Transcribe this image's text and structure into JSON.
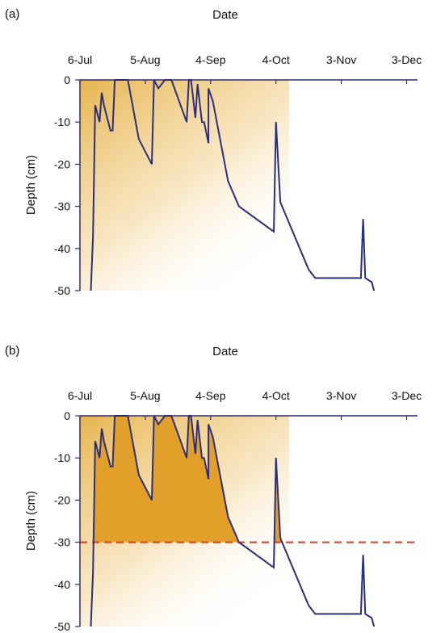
{
  "chart_data": [
    {
      "type": "line",
      "panel_label": "(a)",
      "title": "Date",
      "xlabel": "Date",
      "ylabel": "Depth (cm)",
      "x_ticks": [
        "6-Jul",
        "5-Aug",
        "4-Sep",
        "4-Oct",
        "3-Nov",
        "3-Dec"
      ],
      "x_tick_dates": [
        "2000-07-06",
        "2000-08-05",
        "2000-09-04",
        "2000-10-04",
        "2000-11-03",
        "2000-12-03"
      ],
      "xlim": [
        "2000-07-06",
        "2000-12-08"
      ],
      "y_ticks": [
        "0",
        "-10",
        "-20",
        "-30",
        "-40",
        "-50"
      ],
      "ylim": [
        -50,
        0
      ],
      "grid": false,
      "x_axis_position": "top",
      "colors": {
        "line": "#2b2f7a",
        "fill_top": "#e2a72e",
        "fill_bottom": "#ffffff"
      },
      "background_fill": "gradient",
      "series": [
        {
          "points": [
            {
              "x": "2000-07-11",
              "y": -50
            },
            {
              "x": "2000-07-12",
              "y": -37
            },
            {
              "x": "2000-07-13",
              "y": -6
            },
            {
              "x": "2000-07-14",
              "y": -8
            },
            {
              "x": "2000-07-15",
              "y": -10
            },
            {
              "x": "2000-07-16",
              "y": -3
            },
            {
              "x": "2000-07-17",
              "y": -6
            },
            {
              "x": "2000-07-18",
              "y": -8
            },
            {
              "x": "2000-07-20",
              "y": -12
            },
            {
              "x": "2000-07-21",
              "y": -12
            },
            {
              "x": "2000-07-22",
              "y": 0
            },
            {
              "x": "2000-07-28",
              "y": 0
            },
            {
              "x": "2000-08-02",
              "y": -14
            },
            {
              "x": "2000-08-08",
              "y": -20
            },
            {
              "x": "2000-08-09",
              "y": 0
            },
            {
              "x": "2000-08-11",
              "y": -2
            },
            {
              "x": "2000-08-14",
              "y": 0
            },
            {
              "x": "2000-08-17",
              "y": 0
            },
            {
              "x": "2000-08-24",
              "y": -10
            },
            {
              "x": "2000-08-25",
              "y": 0
            },
            {
              "x": "2000-08-26",
              "y": 0
            },
            {
              "x": "2000-08-28",
              "y": -9
            },
            {
              "x": "2000-08-29",
              "y": -1
            },
            {
              "x": "2000-08-31",
              "y": -10
            },
            {
              "x": "2000-09-01",
              "y": -10
            },
            {
              "x": "2000-09-03",
              "y": -15
            },
            {
              "x": "2000-09-03",
              "y": -2
            },
            {
              "x": "2000-09-05",
              "y": -5
            },
            {
              "x": "2000-09-12",
              "y": -24
            },
            {
              "x": "2000-09-17",
              "y": -30
            },
            {
              "x": "2000-10-03",
              "y": -36
            },
            {
              "x": "2000-10-04",
              "y": -10
            },
            {
              "x": "2000-10-06",
              "y": -29
            },
            {
              "x": "2000-10-19",
              "y": -45
            },
            {
              "x": "2000-10-22",
              "y": -47
            },
            {
              "x": "2000-11-12",
              "y": -47
            },
            {
              "x": "2000-11-13",
              "y": -33
            },
            {
              "x": "2000-11-14",
              "y": -47
            },
            {
              "x": "2000-11-17",
              "y": -48
            },
            {
              "x": "2000-11-18",
              "y": -50
            }
          ]
        }
      ]
    },
    {
      "type": "line",
      "panel_label": "(b)",
      "title": "Date",
      "xlabel": "Date",
      "ylabel": "Depth (cm)",
      "x_ticks": [
        "6-Jul",
        "5-Aug",
        "4-Sep",
        "4-Oct",
        "3-Nov",
        "3-Dec"
      ],
      "x_tick_dates": [
        "2000-07-06",
        "2000-08-05",
        "2000-09-04",
        "2000-10-04",
        "2000-11-03",
        "2000-12-03"
      ],
      "xlim": [
        "2000-07-06",
        "2000-12-08"
      ],
      "y_ticks": [
        "0",
        "-10",
        "-20",
        "-30",
        "-40",
        "-50"
      ],
      "ylim": [
        -50,
        0
      ],
      "grid": false,
      "x_axis_position": "top",
      "threshold": -30,
      "colors": {
        "line": "#2b2f7a",
        "fill_above_threshold": "#e2a02a",
        "threshold_line": "#e0391f",
        "fill_top": "#e2a72e",
        "fill_bottom": "#ffffff"
      },
      "background_fill": "gradient",
      "series": [
        {
          "points": [
            {
              "x": "2000-07-11",
              "y": -50
            },
            {
              "x": "2000-07-12",
              "y": -37
            },
            {
              "x": "2000-07-13",
              "y": -6
            },
            {
              "x": "2000-07-14",
              "y": -8
            },
            {
              "x": "2000-07-15",
              "y": -10
            },
            {
              "x": "2000-07-16",
              "y": -3
            },
            {
              "x": "2000-07-17",
              "y": -6
            },
            {
              "x": "2000-07-18",
              "y": -8
            },
            {
              "x": "2000-07-20",
              "y": -12
            },
            {
              "x": "2000-07-21",
              "y": -12
            },
            {
              "x": "2000-07-22",
              "y": 0
            },
            {
              "x": "2000-07-28",
              "y": 0
            },
            {
              "x": "2000-08-02",
              "y": -14
            },
            {
              "x": "2000-08-08",
              "y": -20
            },
            {
              "x": "2000-08-09",
              "y": 0
            },
            {
              "x": "2000-08-11",
              "y": -2
            },
            {
              "x": "2000-08-14",
              "y": 0
            },
            {
              "x": "2000-08-17",
              "y": 0
            },
            {
              "x": "2000-08-24",
              "y": -10
            },
            {
              "x": "2000-08-25",
              "y": 0
            },
            {
              "x": "2000-08-26",
              "y": 0
            },
            {
              "x": "2000-08-28",
              "y": -9
            },
            {
              "x": "2000-08-29",
              "y": -1
            },
            {
              "x": "2000-08-31",
              "y": -10
            },
            {
              "x": "2000-09-01",
              "y": -10
            },
            {
              "x": "2000-09-03",
              "y": -15
            },
            {
              "x": "2000-09-03",
              "y": -2
            },
            {
              "x": "2000-09-05",
              "y": -5
            },
            {
              "x": "2000-09-12",
              "y": -24
            },
            {
              "x": "2000-09-17",
              "y": -30
            },
            {
              "x": "2000-10-03",
              "y": -36
            },
            {
              "x": "2000-10-04",
              "y": -10
            },
            {
              "x": "2000-10-06",
              "y": -29
            },
            {
              "x": "2000-10-19",
              "y": -45
            },
            {
              "x": "2000-10-22",
              "y": -47
            },
            {
              "x": "2000-11-12",
              "y": -47
            },
            {
              "x": "2000-11-13",
              "y": -33
            },
            {
              "x": "2000-11-14",
              "y": -47
            },
            {
              "x": "2000-11-17",
              "y": -48
            },
            {
              "x": "2000-11-18",
              "y": -50
            }
          ]
        }
      ]
    }
  ]
}
